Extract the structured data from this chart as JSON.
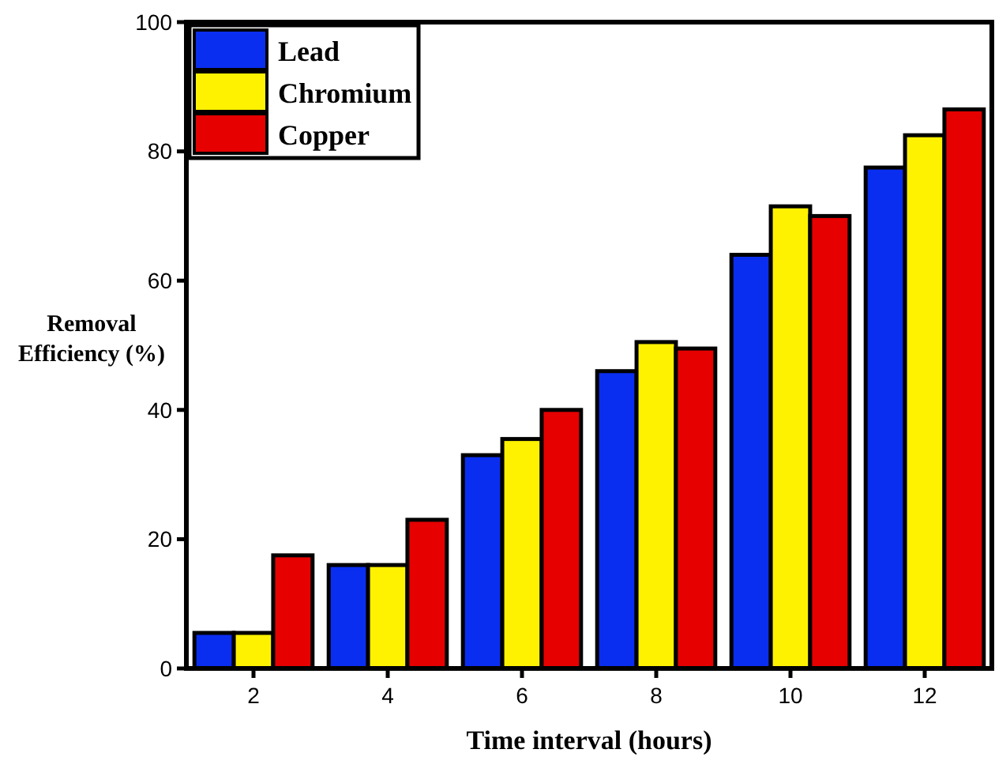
{
  "chart_data": {
    "type": "bar",
    "xlabel": "Time interval (hours)",
    "ylabel": "Removal Efficiency (%)",
    "categories": [
      "2",
      "4",
      "6",
      "8",
      "10",
      "12"
    ],
    "series": [
      {
        "name": "Lead",
        "color": "#0a2ef0",
        "values": [
          5.5,
          16,
          33,
          46,
          64,
          77.5
        ]
      },
      {
        "name": "Chromium",
        "color": "#fff200",
        "values": [
          5.5,
          16,
          35.5,
          50.5,
          71.5,
          82.5
        ]
      },
      {
        "name": "Copper",
        "color": "#e60000",
        "values": [
          17.5,
          23,
          40,
          49.5,
          70,
          86.5
        ]
      }
    ],
    "ylim": [
      0,
      100
    ],
    "yticks": [
      0,
      20,
      40,
      60,
      80,
      100
    ],
    "grid": false,
    "legend": "top left"
  }
}
